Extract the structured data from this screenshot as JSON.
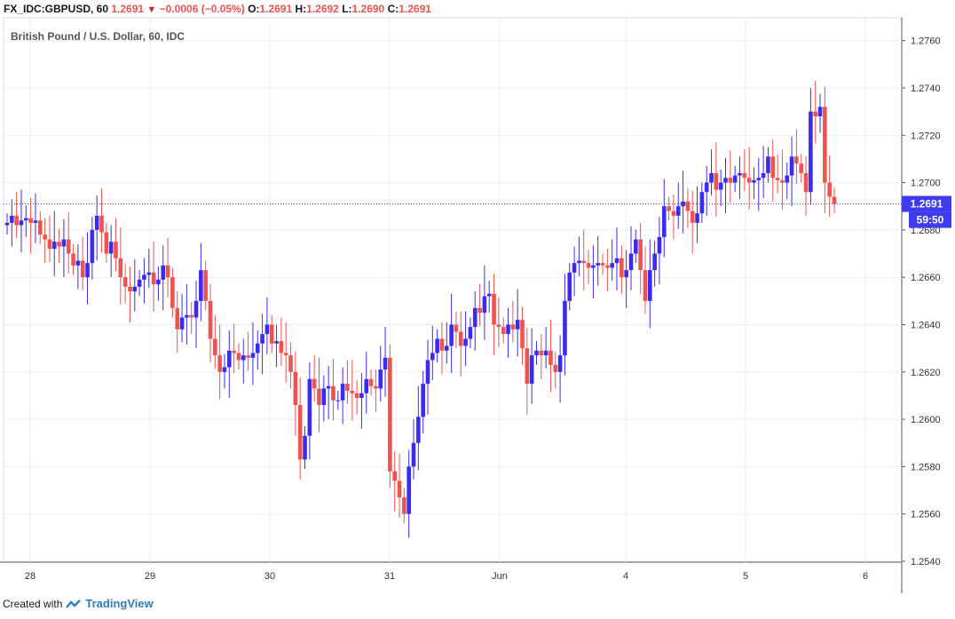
{
  "header": {
    "symbol": "FX_IDC:GBPUSD, 60",
    "last": "1.2691",
    "change": "−0.0006 (−0.05%)",
    "o_label": "O:",
    "o_value": "1.2691",
    "h_label": "H:",
    "h_value": "1.2692",
    "l_label": "L:",
    "l_value": "1.2690",
    "c_label": "C:",
    "c_value": "1.2691"
  },
  "footer": {
    "created_with": "Created with",
    "brand": "TradingView"
  },
  "colors": {
    "up": "#3b2bf0",
    "down": "#ef5350",
    "grid": "#e9edf3",
    "axis": "#555555",
    "price_tag": "#3f3bf0"
  },
  "chart_data": {
    "type": "candlestick",
    "title": "British Pound / U.S. Dollar, 60, IDC",
    "y_ticks": [
      "1.2540",
      "1.2560",
      "1.2580",
      "1.2600",
      "1.2620",
      "1.2640",
      "1.2660",
      "1.2680",
      "1.2700",
      "1.2720",
      "1.2740",
      "1.2760"
    ],
    "ylim": [
      1.254,
      1.2768
    ],
    "x_ticks": [
      "28",
      "29",
      "30",
      "31",
      "Jun",
      "4",
      "5",
      "6"
    ],
    "current_price": "1.2691",
    "countdown": "59:50",
    "grid": true,
    "candles_close": [
      1.2683,
      1.2686,
      1.2682,
      1.2684,
      1.2685,
      1.2683,
      1.2684,
      1.2678,
      1.2676,
      1.2672,
      1.2675,
      1.2673,
      1.2676,
      1.267,
      1.2665,
      1.2667,
      1.266,
      1.2666,
      1.268,
      1.2686,
      1.2679,
      1.267,
      1.2675,
      1.2668,
      1.266,
      1.2656,
      1.2654,
      1.2656,
      1.2659,
      1.2661,
      1.2662,
      1.2657,
      1.2659,
      1.2665,
      1.266,
      1.2647,
      1.2638,
      1.2643,
      1.2644,
      1.2643,
      1.265,
      1.2663,
      1.265,
      1.2634,
      1.2627,
      1.262,
      1.2622,
      1.2629,
      1.2628,
      1.2625,
      1.2627,
      1.2626,
      1.2628,
      1.2632,
      1.2636,
      1.264,
      1.2632,
      1.2633,
      1.2628,
      1.2627,
      1.262,
      1.2606,
      1.2583,
      1.2593,
      1.2617,
      1.2613,
      1.2606,
      1.2613,
      1.2614,
      1.2608,
      1.2608,
      1.2615,
      1.2612,
      1.2611,
      1.2609,
      1.2611,
      1.2617,
      1.2614,
      1.2613,
      1.2621,
      1.2626,
      1.2578,
      1.2574,
      1.2567,
      1.256,
      1.258,
      1.259,
      1.2601,
      1.2615,
      1.2625,
      1.2628,
      1.2634,
      1.2629,
      1.2631,
      1.264,
      1.2637,
      1.2631,
      1.2634,
      1.2639,
      1.2647,
      1.2645,
      1.2652,
      1.2653,
      1.264,
      1.2639,
      1.2636,
      1.264,
      1.2638,
      1.2642,
      1.263,
      1.2615,
      1.2627,
      1.2629,
      1.2627,
      1.2629,
      1.2623,
      1.262,
      1.2627,
      1.265,
      1.2662,
      1.2666,
      1.2667,
      1.2666,
      1.2664,
      1.2665,
      1.2666,
      1.2665,
      1.2664,
      1.2666,
      1.2668,
      1.266,
      1.2663,
      1.267,
      1.2676,
      1.2663,
      1.265,
      1.2663,
      1.267,
      1.2677,
      1.269,
      1.2688,
      1.2686,
      1.269,
      1.2692,
      1.2688,
      1.2683,
      1.2687,
      1.2696,
      1.27,
      1.2704,
      1.2697,
      1.27,
      1.2702,
      1.27,
      1.2703,
      1.2704,
      1.2702,
      1.27,
      1.2701,
      1.2702,
      1.2704,
      1.2711,
      1.2702,
      1.2701,
      1.27,
      1.2703,
      1.2711,
      1.2708,
      1.2704,
      1.2696,
      1.273,
      1.2728,
      1.2732,
      1.27,
      1.2694,
      1.2691
    ],
    "candles_open_first": 1.2682
  }
}
